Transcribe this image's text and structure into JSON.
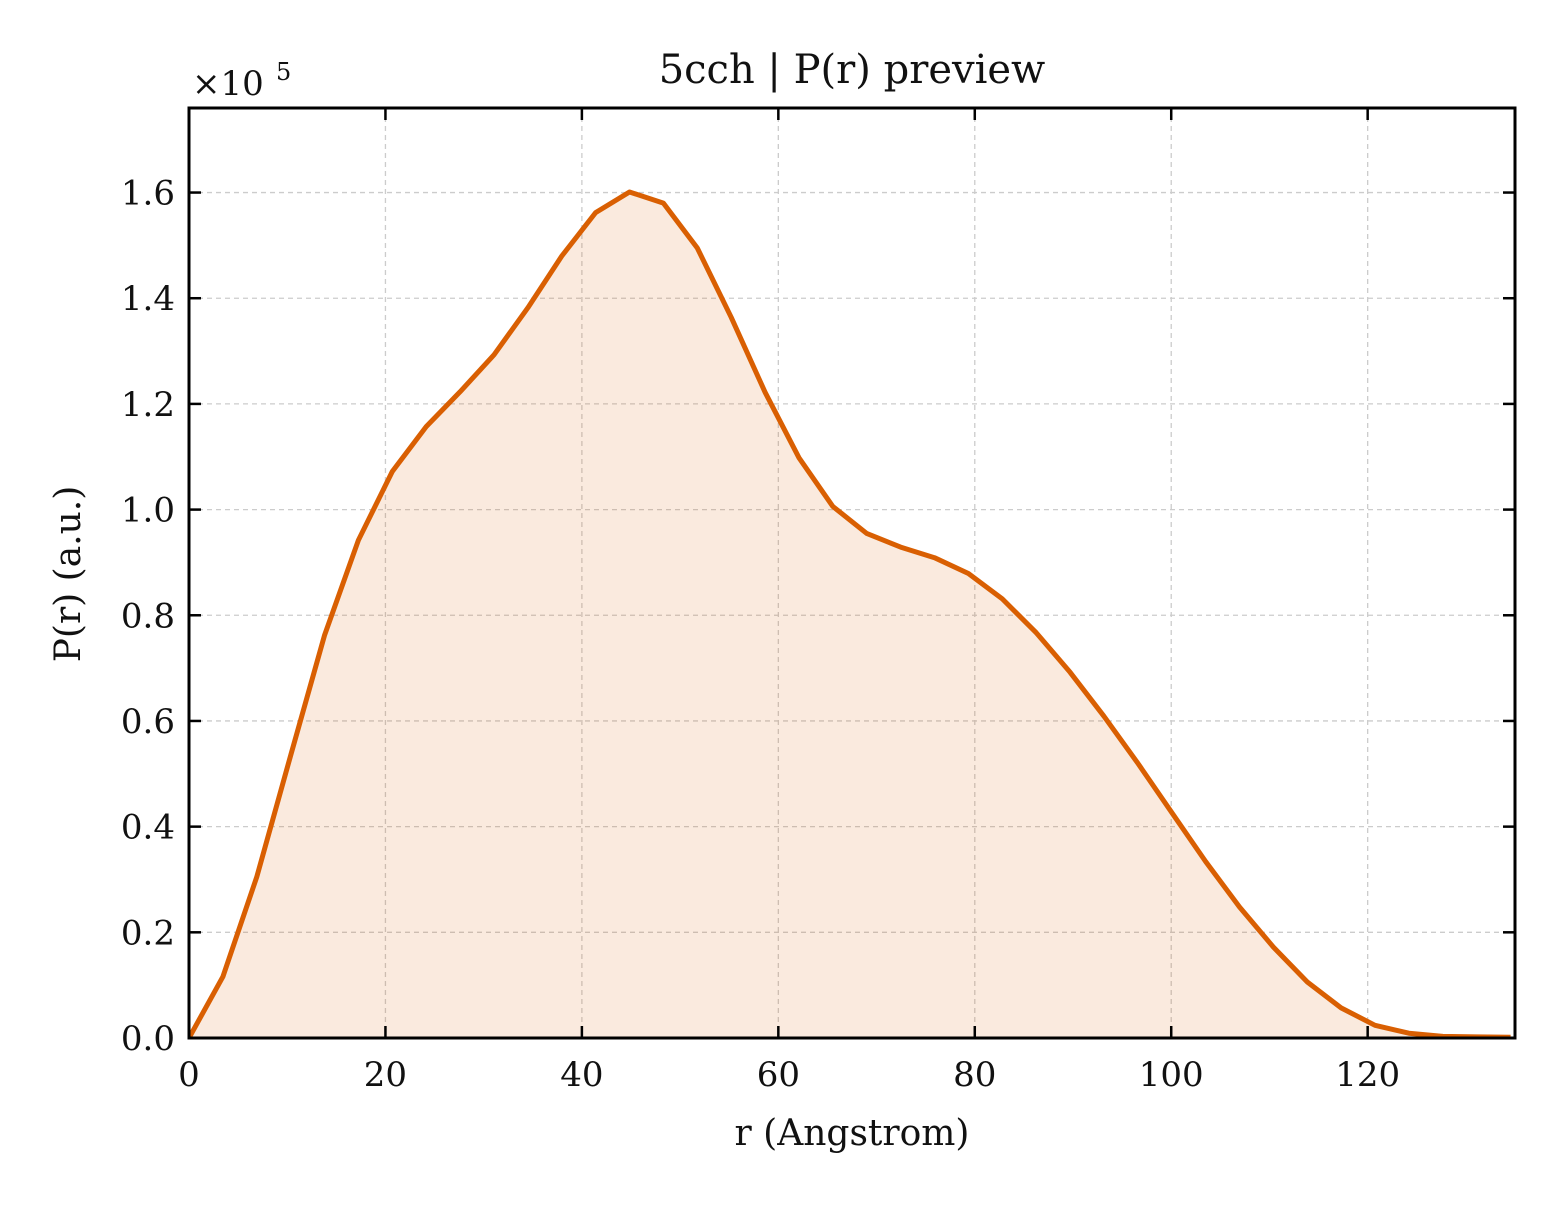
{
  "chart_data": {
    "type": "area",
    "title": "5cch | P(r) preview",
    "xlabel": "r (Angstrom)",
    "ylabel": "P(r) (a.u.)",
    "y_scale_label": {
      "base": "×10",
      "exponent": "5"
    },
    "xlim": [
      0,
      135
    ],
    "ylim": [
      0,
      1.76
    ],
    "x_ticks": [
      0,
      20,
      40,
      60,
      80,
      100,
      120
    ],
    "x_tick_labels": [
      "0",
      "20",
      "40",
      "60",
      "80",
      "100",
      "120"
    ],
    "y_ticks": [
      0,
      0.2,
      0.4,
      0.6,
      0.8,
      1.0,
      1.2,
      1.4,
      1.6
    ],
    "y_tick_labels": [
      "0.0",
      "0.2",
      "0.4",
      "0.6",
      "0.8",
      "1.0",
      "1.2",
      "1.4",
      "1.6"
    ],
    "grid": true,
    "line_color": "#d95f02",
    "fill_color": "#d95f02",
    "fill_opacity": 0.13,
    "series": [
      {
        "x": [
          0,
          3.45,
          6.9,
          10.35,
          13.8,
          17.25,
          20.7,
          24.15,
          27.6,
          31.05,
          34.5,
          37.95,
          41.4,
          44.85,
          48.3,
          51.75,
          55.2,
          58.65,
          62.1,
          65.55,
          69.0,
          72.45,
          75.9,
          79.35,
          82.8,
          86.25,
          89.7,
          93.15,
          96.6,
          100.05,
          103.5,
          106.95,
          110.4,
          113.85,
          117.3,
          120.75,
          124.2,
          127.65,
          131.1,
          134.55
        ],
        "y": [
          0.0,
          0.116,
          0.305,
          0.535,
          0.762,
          0.942,
          1.072,
          1.157,
          1.223,
          1.293,
          1.382,
          1.48,
          1.562,
          1.601,
          1.58,
          1.495,
          1.364,
          1.222,
          1.098,
          1.006,
          0.955,
          0.929,
          0.909,
          0.879,
          0.831,
          0.767,
          0.692,
          0.609,
          0.52,
          0.427,
          0.334,
          0.248,
          0.172,
          0.106,
          0.057,
          0.024,
          0.009,
          0.003,
          0.002,
          0.0015
        ]
      }
    ]
  }
}
